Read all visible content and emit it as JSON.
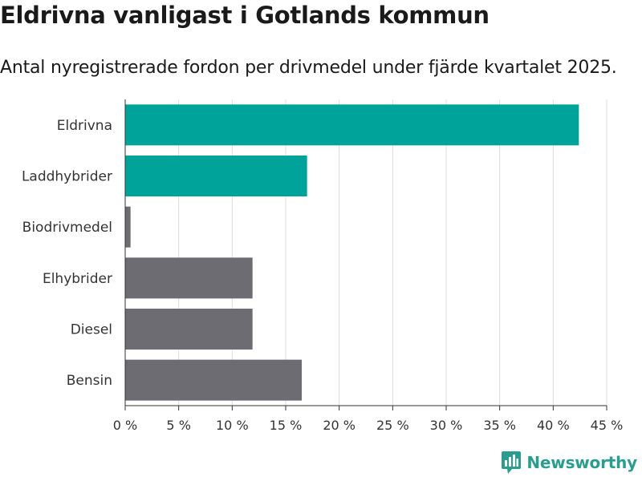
{
  "title": "Eldrivna vanligast i Gotlands kommun",
  "subtitle": "Antal nyregistrerade fordon per drivmedel under fjärde kvartalet 2025.",
  "brand": {
    "name": "Newsworthy",
    "icon": "newsworthy-logo-icon",
    "color": "#2a9d8f"
  },
  "colors": {
    "highlight": "#00a39a",
    "default": "#6d6c72",
    "grid": "#dddddd",
    "axis": "#333333"
  },
  "chart_data": {
    "type": "bar",
    "orientation": "horizontal",
    "title": "Eldrivna vanligast i Gotlands kommun",
    "subtitle": "Antal nyregistrerade fordon per drivmedel under fjärde kvartalet 2025.",
    "xlabel": "",
    "ylabel": "",
    "xlim": [
      0,
      45
    ],
    "grid": true,
    "categories": [
      "Eldrivna",
      "Laddhybrider",
      "Biodrivmedel",
      "Elhybrider",
      "Diesel",
      "Bensin"
    ],
    "values": [
      42.4,
      17.0,
      0.5,
      11.9,
      11.9,
      16.5
    ],
    "highlight": [
      true,
      true,
      false,
      false,
      false,
      false
    ],
    "ticks": [
      0,
      5,
      10,
      15,
      20,
      25,
      30,
      35,
      40,
      45
    ],
    "tick_labels": [
      "0 %",
      "5 %",
      "10 %",
      "15 %",
      "20 %",
      "25 %",
      "30 %",
      "35 %",
      "40 %",
      "45 %"
    ]
  }
}
